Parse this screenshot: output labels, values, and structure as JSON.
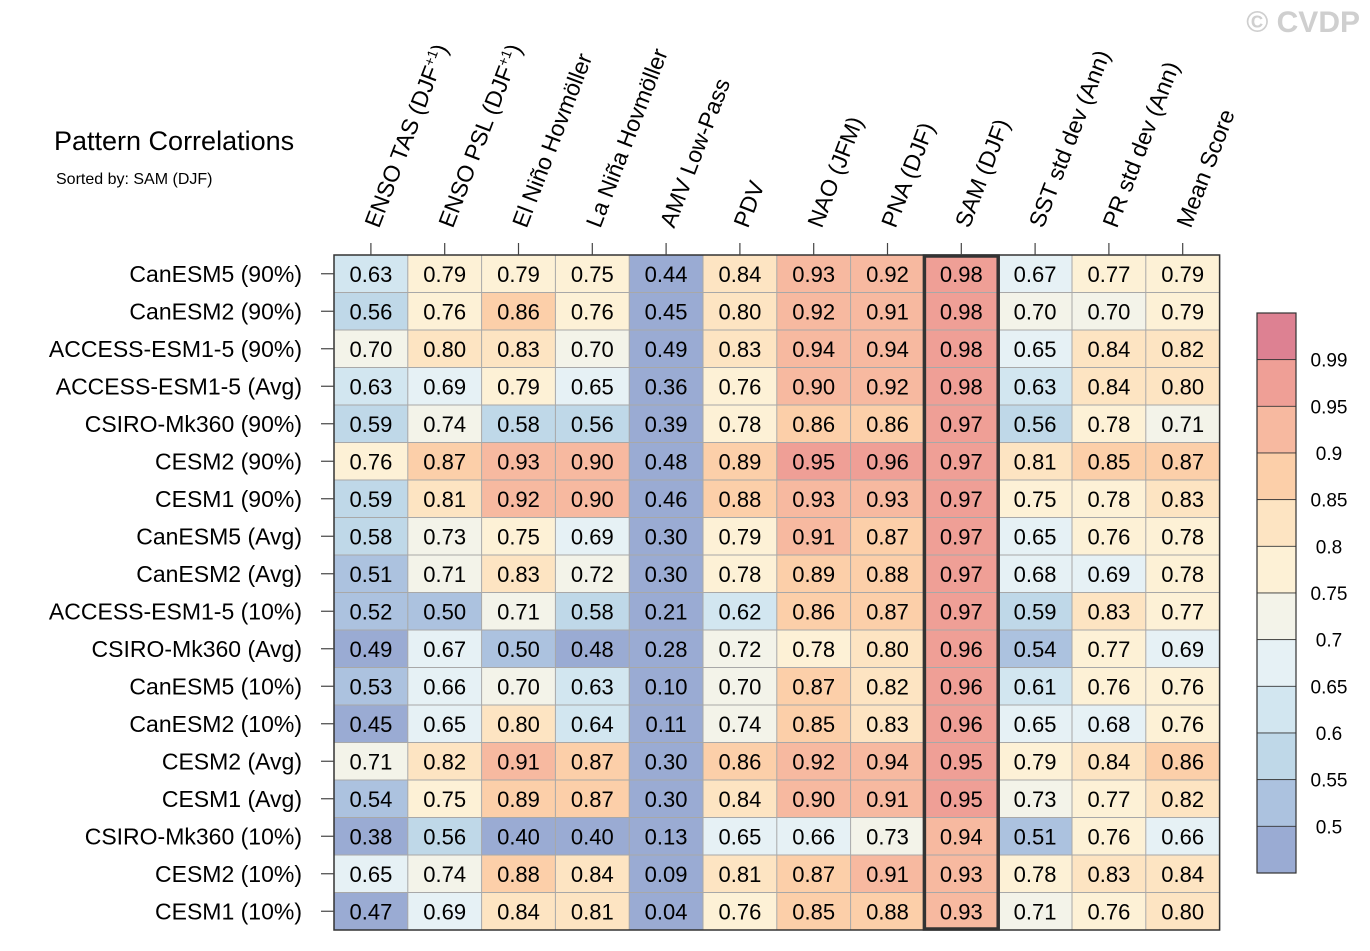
{
  "watermark": "© CVDP",
  "title": "Pattern Correlations",
  "subtitle": "Sorted by: SAM (DJF)",
  "chart_data": {
    "type": "heatmap",
    "title": "Pattern Correlations",
    "subtitle": "Sorted by: SAM (DJF)",
    "columns": [
      "ENSO TAS (DJF+1)",
      "ENSO PSL (DJF+1)",
      "El Niño Hovmöller",
      "La Niña Hovmöller",
      "AMV Low-Pass",
      "PDV",
      "NAO (JFM)",
      "PNA (DJF)",
      "SAM (DJF)",
      "SST std dev (Ann)",
      "PR std dev (Ann)",
      "Mean Score"
    ],
    "rows": [
      "CanESM5 (90%)",
      "CanESM2 (90%)",
      "ACCESS-ESM1-5 (90%)",
      "ACCESS-ESM1-5 (Avg)",
      "CSIRO-Mk360 (90%)",
      "CESM2 (90%)",
      "CESM1 (90%)",
      "CanESM5 (Avg)",
      "CanESM2 (Avg)",
      "ACCESS-ESM1-5 (10%)",
      "CSIRO-Mk360 (Avg)",
      "CanESM5 (10%)",
      "CanESM2 (10%)",
      "CESM2 (Avg)",
      "CESM1 (Avg)",
      "CSIRO-Mk360 (10%)",
      "CESM2 (10%)",
      "CESM1 (10%)"
    ],
    "values": [
      [
        0.63,
        0.79,
        0.79,
        0.75,
        0.44,
        0.84,
        0.93,
        0.92,
        0.98,
        0.67,
        0.77,
        0.79
      ],
      [
        0.56,
        0.76,
        0.86,
        0.76,
        0.45,
        0.8,
        0.92,
        0.91,
        0.98,
        0.7,
        0.7,
        0.79
      ],
      [
        0.7,
        0.8,
        0.83,
        0.7,
        0.49,
        0.83,
        0.94,
        0.94,
        0.98,
        0.65,
        0.84,
        0.82
      ],
      [
        0.63,
        0.69,
        0.79,
        0.65,
        0.36,
        0.76,
        0.9,
        0.92,
        0.98,
        0.63,
        0.84,
        0.8
      ],
      [
        0.59,
        0.74,
        0.58,
        0.56,
        0.39,
        0.78,
        0.86,
        0.86,
        0.97,
        0.56,
        0.78,
        0.71
      ],
      [
        0.76,
        0.87,
        0.93,
        0.9,
        0.48,
        0.89,
        0.95,
        0.96,
        0.97,
        0.81,
        0.85,
        0.87
      ],
      [
        0.59,
        0.81,
        0.92,
        0.9,
        0.46,
        0.88,
        0.93,
        0.93,
        0.97,
        0.75,
        0.78,
        0.83
      ],
      [
        0.58,
        0.73,
        0.75,
        0.69,
        0.3,
        0.79,
        0.91,
        0.87,
        0.97,
        0.65,
        0.76,
        0.78
      ],
      [
        0.51,
        0.71,
        0.83,
        0.72,
        0.3,
        0.78,
        0.89,
        0.88,
        0.97,
        0.68,
        0.69,
        0.78
      ],
      [
        0.52,
        0.5,
        0.71,
        0.58,
        0.21,
        0.62,
        0.86,
        0.87,
        0.97,
        0.59,
        0.83,
        0.77
      ],
      [
        0.49,
        0.67,
        0.5,
        0.48,
        0.28,
        0.72,
        0.78,
        0.8,
        0.96,
        0.54,
        0.77,
        0.69
      ],
      [
        0.53,
        0.66,
        0.7,
        0.63,
        0.1,
        0.7,
        0.87,
        0.82,
        0.96,
        0.61,
        0.76,
        0.76
      ],
      [
        0.45,
        0.65,
        0.8,
        0.64,
        0.11,
        0.74,
        0.85,
        0.83,
        0.96,
        0.65,
        0.68,
        0.76
      ],
      [
        0.71,
        0.82,
        0.91,
        0.87,
        0.3,
        0.86,
        0.92,
        0.94,
        0.95,
        0.79,
        0.84,
        0.86
      ],
      [
        0.54,
        0.75,
        0.89,
        0.87,
        0.3,
        0.84,
        0.9,
        0.91,
        0.95,
        0.73,
        0.77,
        0.82
      ],
      [
        0.38,
        0.56,
        0.4,
        0.4,
        0.13,
        0.65,
        0.66,
        0.73,
        0.94,
        0.51,
        0.76,
        0.66
      ],
      [
        0.65,
        0.74,
        0.88,
        0.84,
        0.09,
        0.81,
        0.87,
        0.91,
        0.93,
        0.78,
        0.83,
        0.84
      ],
      [
        0.47,
        0.69,
        0.84,
        0.81,
        0.04,
        0.76,
        0.85,
        0.88,
        0.93,
        0.71,
        0.76,
        0.8
      ]
    ],
    "highlighted_column": "SAM (DJF)",
    "colorbar": {
      "ticks": [
        "0.99",
        "0.95",
        "0.9",
        "0.85",
        "0.8",
        "0.75",
        "0.7",
        "0.65",
        "0.6",
        "0.55",
        "0.5"
      ],
      "levels": [
        0.5,
        0.55,
        0.6,
        0.65,
        0.7,
        0.75,
        0.8,
        0.85,
        0.9,
        0.95,
        0.99
      ],
      "colors": [
        "#9aabd3",
        "#acc2df",
        "#bfd8e8",
        "#d2e6f0",
        "#e6f1f5",
        "#f3f3e9",
        "#fdf1d6",
        "#fde4c2",
        "#fccfa9",
        "#f7b9a0",
        "#ef9f96",
        "#dd8192"
      ]
    }
  }
}
